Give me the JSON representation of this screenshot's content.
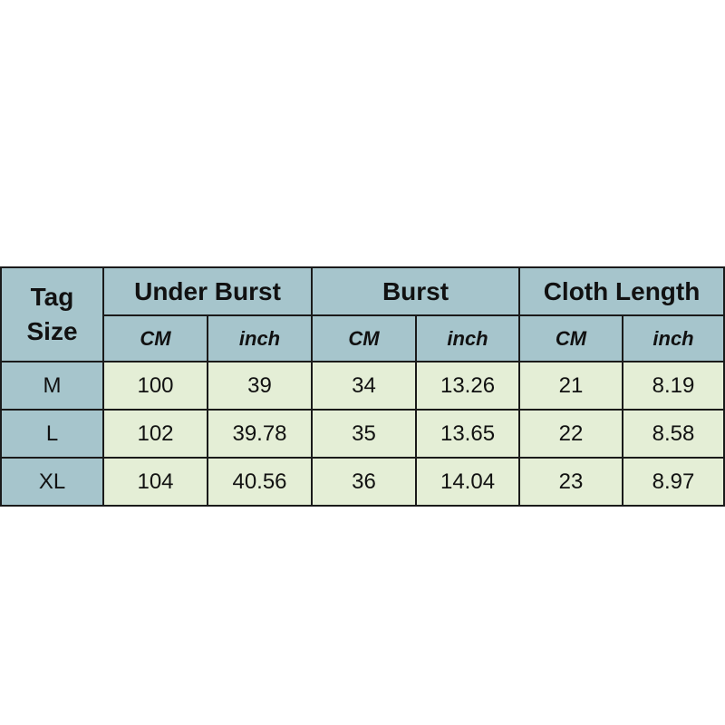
{
  "colors": {
    "header": "#a6c5cc",
    "cell": "#e4eed6",
    "border": "#1a1a1a"
  },
  "header": {
    "tag_line1": "Tag",
    "tag_line2": "Size",
    "groups": [
      "Under Burst",
      "Burst",
      "Cloth Length"
    ],
    "units": [
      "CM",
      "inch",
      "CM",
      "inch",
      "CM",
      "inch"
    ]
  },
  "rows": [
    {
      "size": "M",
      "values": [
        "100",
        "39",
        "34",
        "13.26",
        "21",
        "8.19"
      ]
    },
    {
      "size": "L",
      "values": [
        "102",
        "39.78",
        "35",
        "13.65",
        "22",
        "8.58"
      ]
    },
    {
      "size": "XL",
      "values": [
        "104",
        "40.56",
        "36",
        "14.04",
        "23",
        "8.97"
      ]
    }
  ]
}
